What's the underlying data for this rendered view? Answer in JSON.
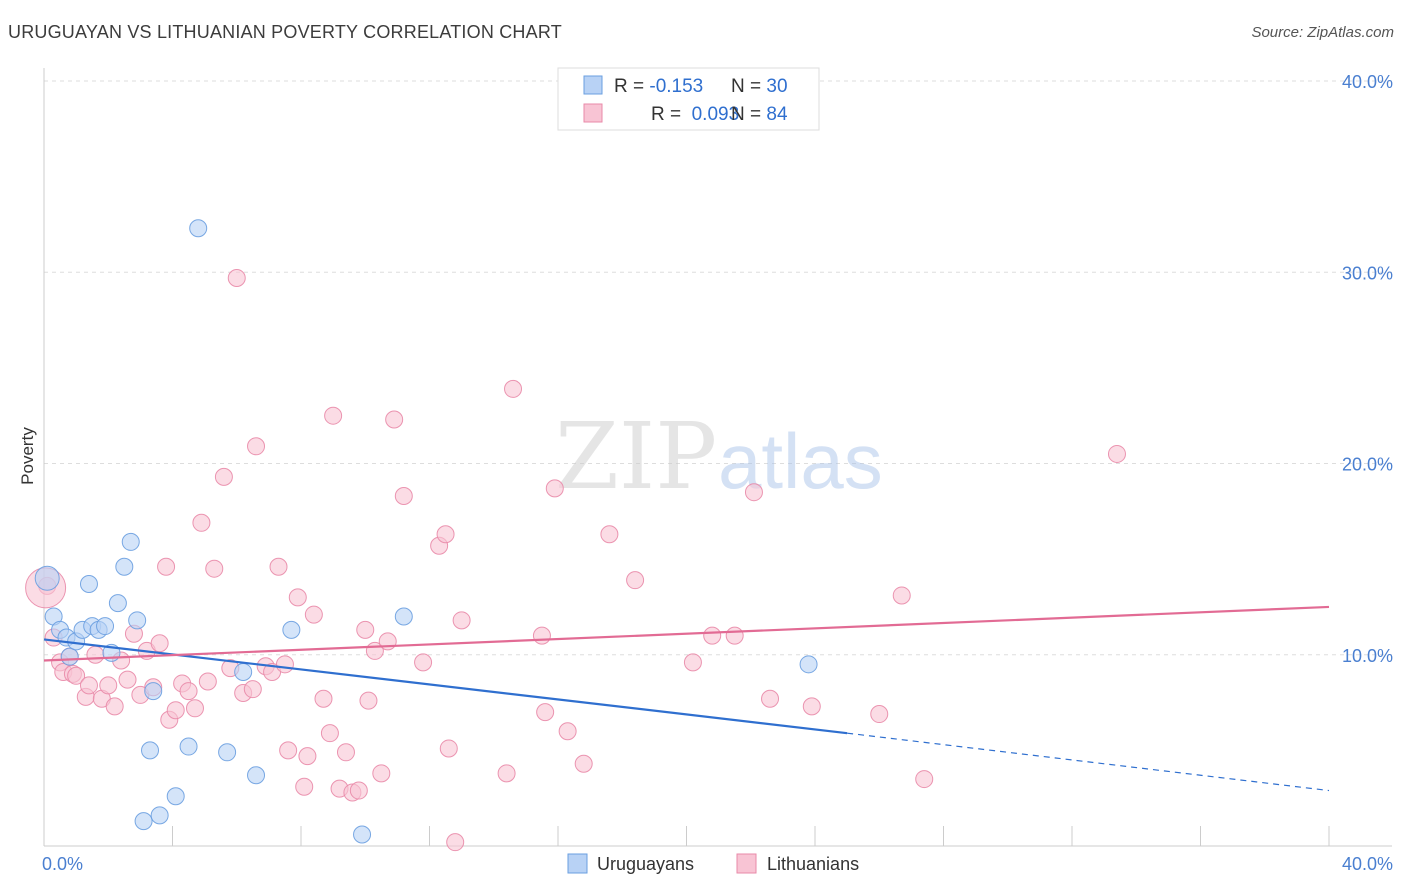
{
  "header": {
    "title": "URUGUAYAN VS LITHUANIAN POVERTY CORRELATION CHART",
    "source": "Source: ZipAtlas.com"
  },
  "watermark": {
    "part1": "ZIP",
    "part2": "atlas"
  },
  "colors": {
    "uruguayans": "#6a9fe0",
    "uruguayans_fill": "#b8d2f5",
    "uruguayans_line": "#2f6fcf",
    "lithuanians": "#e98aa8",
    "lithuanians_fill": "#f8c4d4",
    "lithuanians_line": "#e26b94",
    "tick_label": "#4a7fd0",
    "grid": "#dddddd"
  },
  "legend_top": {
    "rows": [
      {
        "r_label": "R = ",
        "r_value": "-0.153",
        "n_label": "N = ",
        "n_value": "30"
      },
      {
        "r_label": "R = ",
        "r_value": " 0.093",
        "n_label": "N = ",
        "n_value": "84"
      }
    ]
  },
  "chart_data": {
    "type": "scatter",
    "ylabel": "Poverty",
    "xlim": [
      0,
      40
    ],
    "ylim": [
      0,
      40
    ],
    "x_tick_labels": [
      {
        "value": 0,
        "label": "0.0%"
      },
      {
        "value": 40,
        "label": "40.0%"
      }
    ],
    "y_tick_labels": [
      {
        "value": 10,
        "label": "10.0%"
      },
      {
        "value": 20,
        "label": "20.0%"
      },
      {
        "value": 30,
        "label": "30.0%"
      },
      {
        "value": 40,
        "label": "40.0%"
      }
    ],
    "grid": true,
    "legend_position": "bottom-center",
    "series": [
      {
        "name": "Uruguayans",
        "r": -0.153,
        "n": 30,
        "trend": {
          "x0": 0,
          "y0": 10.8,
          "x1": 25,
          "y1": 5.9,
          "dash_to_x": 40,
          "dash_to_y": 2.9
        },
        "points": [
          [
            0.1,
            14.0
          ],
          [
            0.3,
            12.0
          ],
          [
            0.5,
            11.3
          ],
          [
            0.7,
            10.9
          ],
          [
            0.8,
            9.9
          ],
          [
            1.0,
            10.7
          ],
          [
            1.2,
            11.3
          ],
          [
            1.4,
            13.7
          ],
          [
            1.5,
            11.5
          ],
          [
            1.7,
            11.3
          ],
          [
            1.9,
            11.5
          ],
          [
            2.1,
            10.1
          ],
          [
            2.3,
            12.7
          ],
          [
            2.5,
            14.6
          ],
          [
            2.7,
            15.9
          ],
          [
            2.9,
            11.8
          ],
          [
            3.1,
            1.3
          ],
          [
            3.3,
            5.0
          ],
          [
            3.4,
            8.1
          ],
          [
            3.6,
            1.6
          ],
          [
            4.1,
            2.6
          ],
          [
            4.5,
            5.2
          ],
          [
            4.8,
            32.3
          ],
          [
            5.7,
            4.9
          ],
          [
            6.2,
            9.1
          ],
          [
            6.6,
            3.7
          ],
          [
            7.7,
            11.3
          ],
          [
            9.9,
            0.6
          ],
          [
            11.2,
            12.0
          ],
          [
            23.8,
            9.5
          ]
        ]
      },
      {
        "name": "Lithuanians",
        "r": 0.093,
        "n": 84,
        "trend": {
          "x0": 0,
          "y0": 9.7,
          "x1": 40,
          "y1": 12.5
        },
        "points": [
          [
            0.1,
            13.6
          ],
          [
            0.3,
            10.9
          ],
          [
            0.5,
            9.6
          ],
          [
            0.6,
            9.1
          ],
          [
            0.8,
            9.9
          ],
          [
            0.9,
            9.0
          ],
          [
            1.0,
            8.9
          ],
          [
            1.3,
            7.8
          ],
          [
            1.4,
            8.4
          ],
          [
            1.6,
            10.0
          ],
          [
            1.8,
            7.7
          ],
          [
            2.0,
            8.4
          ],
          [
            2.2,
            7.3
          ],
          [
            2.4,
            9.7
          ],
          [
            2.6,
            8.7
          ],
          [
            2.8,
            11.1
          ],
          [
            3.0,
            7.9
          ],
          [
            3.2,
            10.2
          ],
          [
            3.4,
            8.3
          ],
          [
            3.6,
            10.6
          ],
          [
            3.8,
            14.6
          ],
          [
            3.9,
            6.6
          ],
          [
            4.1,
            7.1
          ],
          [
            4.3,
            8.5
          ],
          [
            4.5,
            8.1
          ],
          [
            4.7,
            7.2
          ],
          [
            4.9,
            16.9
          ],
          [
            5.1,
            8.6
          ],
          [
            5.3,
            14.5
          ],
          [
            5.6,
            19.3
          ],
          [
            5.8,
            9.3
          ],
          [
            6.0,
            29.7
          ],
          [
            6.2,
            8.0
          ],
          [
            6.5,
            8.2
          ],
          [
            6.6,
            20.9
          ],
          [
            6.9,
            9.4
          ],
          [
            7.1,
            9.1
          ],
          [
            7.3,
            14.6
          ],
          [
            7.5,
            9.5
          ],
          [
            7.6,
            5.0
          ],
          [
            7.9,
            13.0
          ],
          [
            8.1,
            3.1
          ],
          [
            8.2,
            4.7
          ],
          [
            8.4,
            12.1
          ],
          [
            8.7,
            7.7
          ],
          [
            8.9,
            5.9
          ],
          [
            9.0,
            22.5
          ],
          [
            9.2,
            3.0
          ],
          [
            9.4,
            4.9
          ],
          [
            9.6,
            2.8
          ],
          [
            9.8,
            2.9
          ],
          [
            10.0,
            11.3
          ],
          [
            10.1,
            7.6
          ],
          [
            10.3,
            10.2
          ],
          [
            10.5,
            3.8
          ],
          [
            10.7,
            10.7
          ],
          [
            10.9,
            22.3
          ],
          [
            11.2,
            18.3
          ],
          [
            11.8,
            9.6
          ],
          [
            12.3,
            15.7
          ],
          [
            12.5,
            16.3
          ],
          [
            12.6,
            5.1
          ],
          [
            12.8,
            0.2
          ],
          [
            13.0,
            11.8
          ],
          [
            14.4,
            3.8
          ],
          [
            14.6,
            23.9
          ],
          [
            15.5,
            11.0
          ],
          [
            15.6,
            7.0
          ],
          [
            15.9,
            18.7
          ],
          [
            16.3,
            6.0
          ],
          [
            16.8,
            4.3
          ],
          [
            17.6,
            16.3
          ],
          [
            18.4,
            13.9
          ],
          [
            20.2,
            9.6
          ],
          [
            20.8,
            11.0
          ],
          [
            21.5,
            11.0
          ],
          [
            22.1,
            18.5
          ],
          [
            22.6,
            7.7
          ],
          [
            23.9,
            7.3
          ],
          [
            26.0,
            6.9
          ],
          [
            26.7,
            13.1
          ],
          [
            27.4,
            3.5
          ],
          [
            33.4,
            20.5
          ],
          [
            0.05,
            13.5
          ]
        ]
      }
    ]
  }
}
